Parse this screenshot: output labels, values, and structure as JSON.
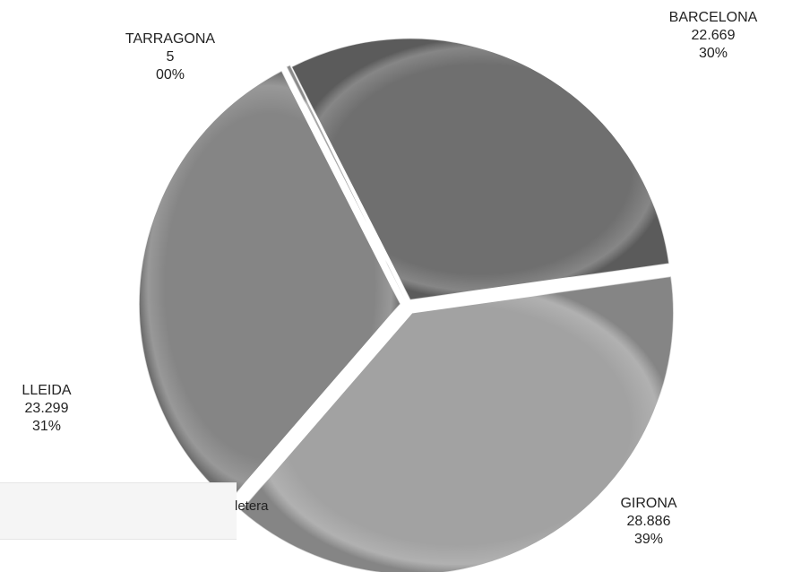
{
  "chart_data": {
    "type": "pie",
    "categories": [
      "BARCELONA",
      "GIRONA",
      "LLEIDA",
      "TARRAGONA"
    ],
    "values": [
      22669,
      28886,
      23299,
      5
    ],
    "value_labels": [
      "22.669",
      "28.886",
      "23.299",
      "5"
    ],
    "percent_labels": [
      "30%",
      "39%",
      "31%",
      "00%"
    ],
    "colors": [
      "#6f6f6f",
      "#a2a2a2",
      "#858585",
      "#a8a8a8"
    ],
    "exploded": true,
    "legend": "none"
  },
  "overlay_fragment": "letera"
}
